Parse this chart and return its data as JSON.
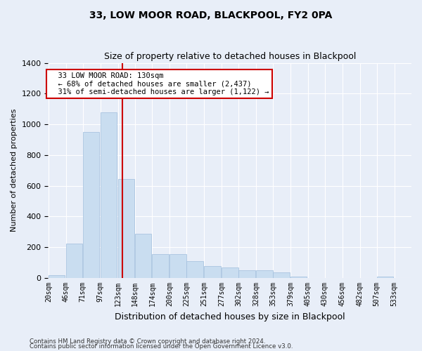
{
  "title": "33, LOW MOOR ROAD, BLACKPOOL, FY2 0PA",
  "subtitle": "Size of property relative to detached houses in Blackpool",
  "xlabel": "Distribution of detached houses by size in Blackpool",
  "ylabel": "Number of detached properties",
  "footer_line1": "Contains HM Land Registry data © Crown copyright and database right 2024.",
  "footer_line2": "Contains public sector information licensed under the Open Government Licence v3.0.",
  "property_label": "33 LOW MOOR ROAD: 130sqm",
  "annotation_line1": "← 68% of detached houses are smaller (2,437)",
  "annotation_line2": "31% of semi-detached houses are larger (1,122) →",
  "property_size_sqm": 130,
  "bins": [
    20,
    46,
    71,
    97,
    123,
    148,
    174,
    200,
    225,
    251,
    277,
    302,
    328,
    353,
    379,
    405,
    430,
    456,
    482,
    507,
    533
  ],
  "counts": [
    20,
    225,
    950,
    1080,
    645,
    290,
    155,
    155,
    110,
    80,
    70,
    50,
    50,
    35,
    10,
    0,
    0,
    0,
    0,
    10,
    0
  ],
  "bar_color": "#c9ddf0",
  "bar_edge_color": "#a0bedd",
  "vline_color": "#cc0000",
  "bg_color": "#e8eef8",
  "grid_color": "#ffffff",
  "annotation_box_color": "#ffffff",
  "annotation_box_edge": "#cc0000",
  "ylim": [
    0,
    1400
  ],
  "yticks": [
    0,
    200,
    400,
    600,
    800,
    1000,
    1200,
    1400
  ]
}
